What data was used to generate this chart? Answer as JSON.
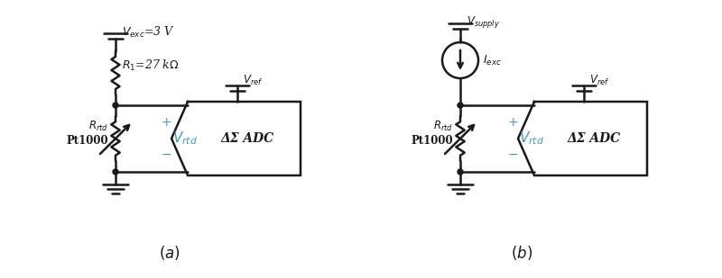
{
  "bg_color": "#ffffff",
  "line_color": "#1a1a1a",
  "blue_color": "#4499cc",
  "fig_width": 8.0,
  "fig_height": 3.09,
  "diagram_a": {
    "adc_label": "ΔΣ ADC"
  },
  "diagram_b": {
    "adc_label": "ΔΣ ADC"
  }
}
